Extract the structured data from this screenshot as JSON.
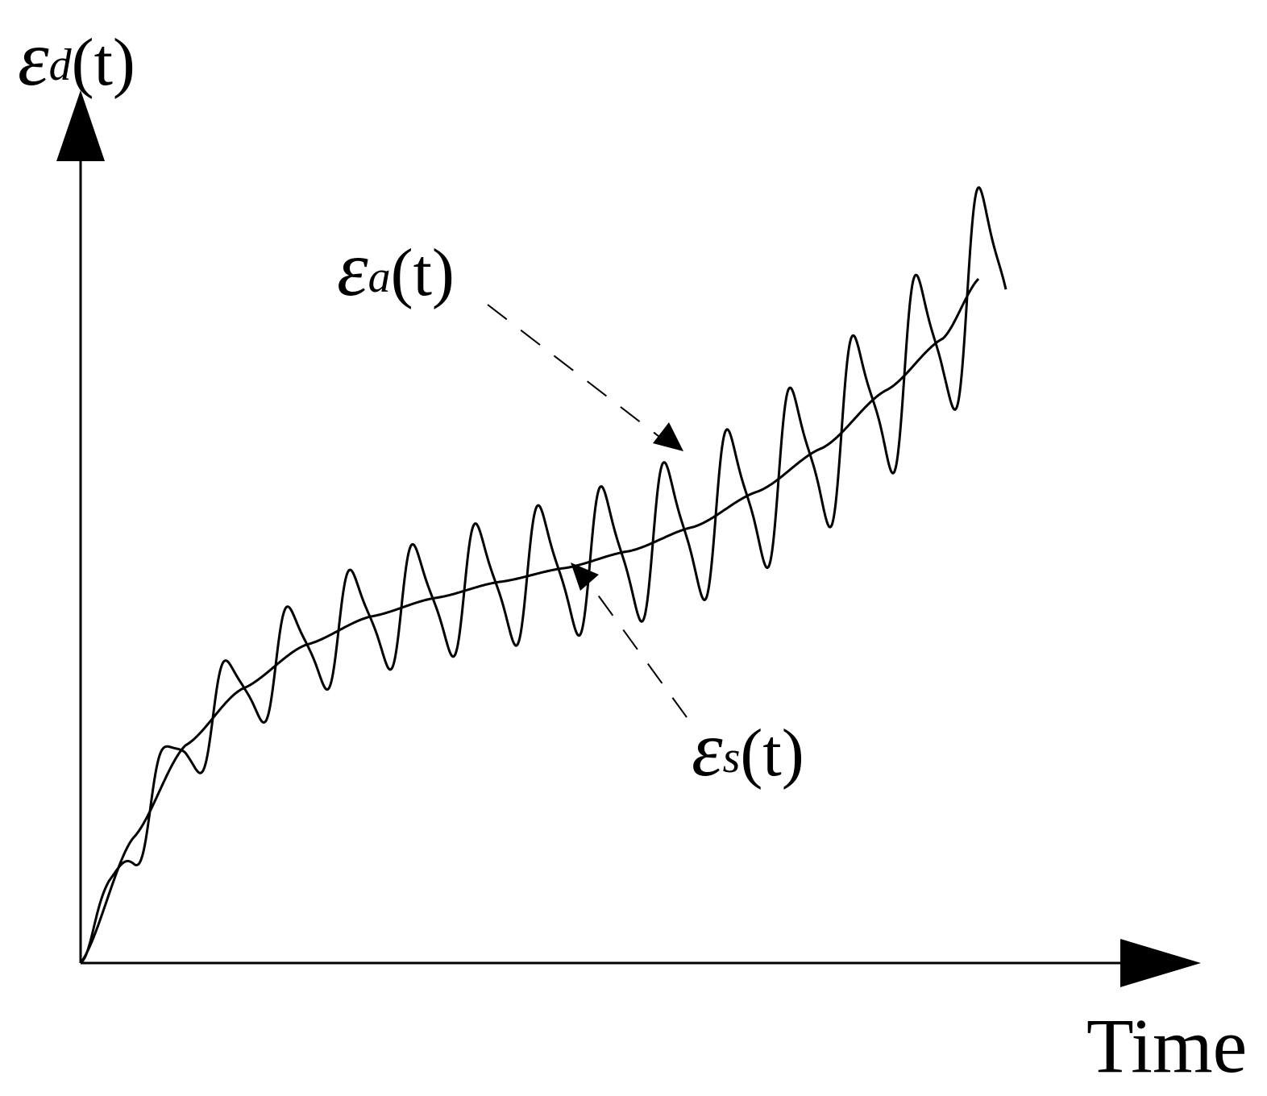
{
  "diagram": {
    "y_axis_label": {
      "symbol": "ε",
      "subscript": "d",
      "arg": "(t)"
    },
    "x_axis_label": "Time",
    "curves": [
      {
        "id": "smooth-trend",
        "label": {
          "symbol": "ε",
          "subscript": "s",
          "arg": "(t)"
        }
      },
      {
        "id": "oscillating",
        "label": {
          "symbol": "ε",
          "subscript": "a",
          "arg": "(t)"
        }
      }
    ],
    "colors": {
      "line": "#000000",
      "background": "#ffffff"
    }
  }
}
